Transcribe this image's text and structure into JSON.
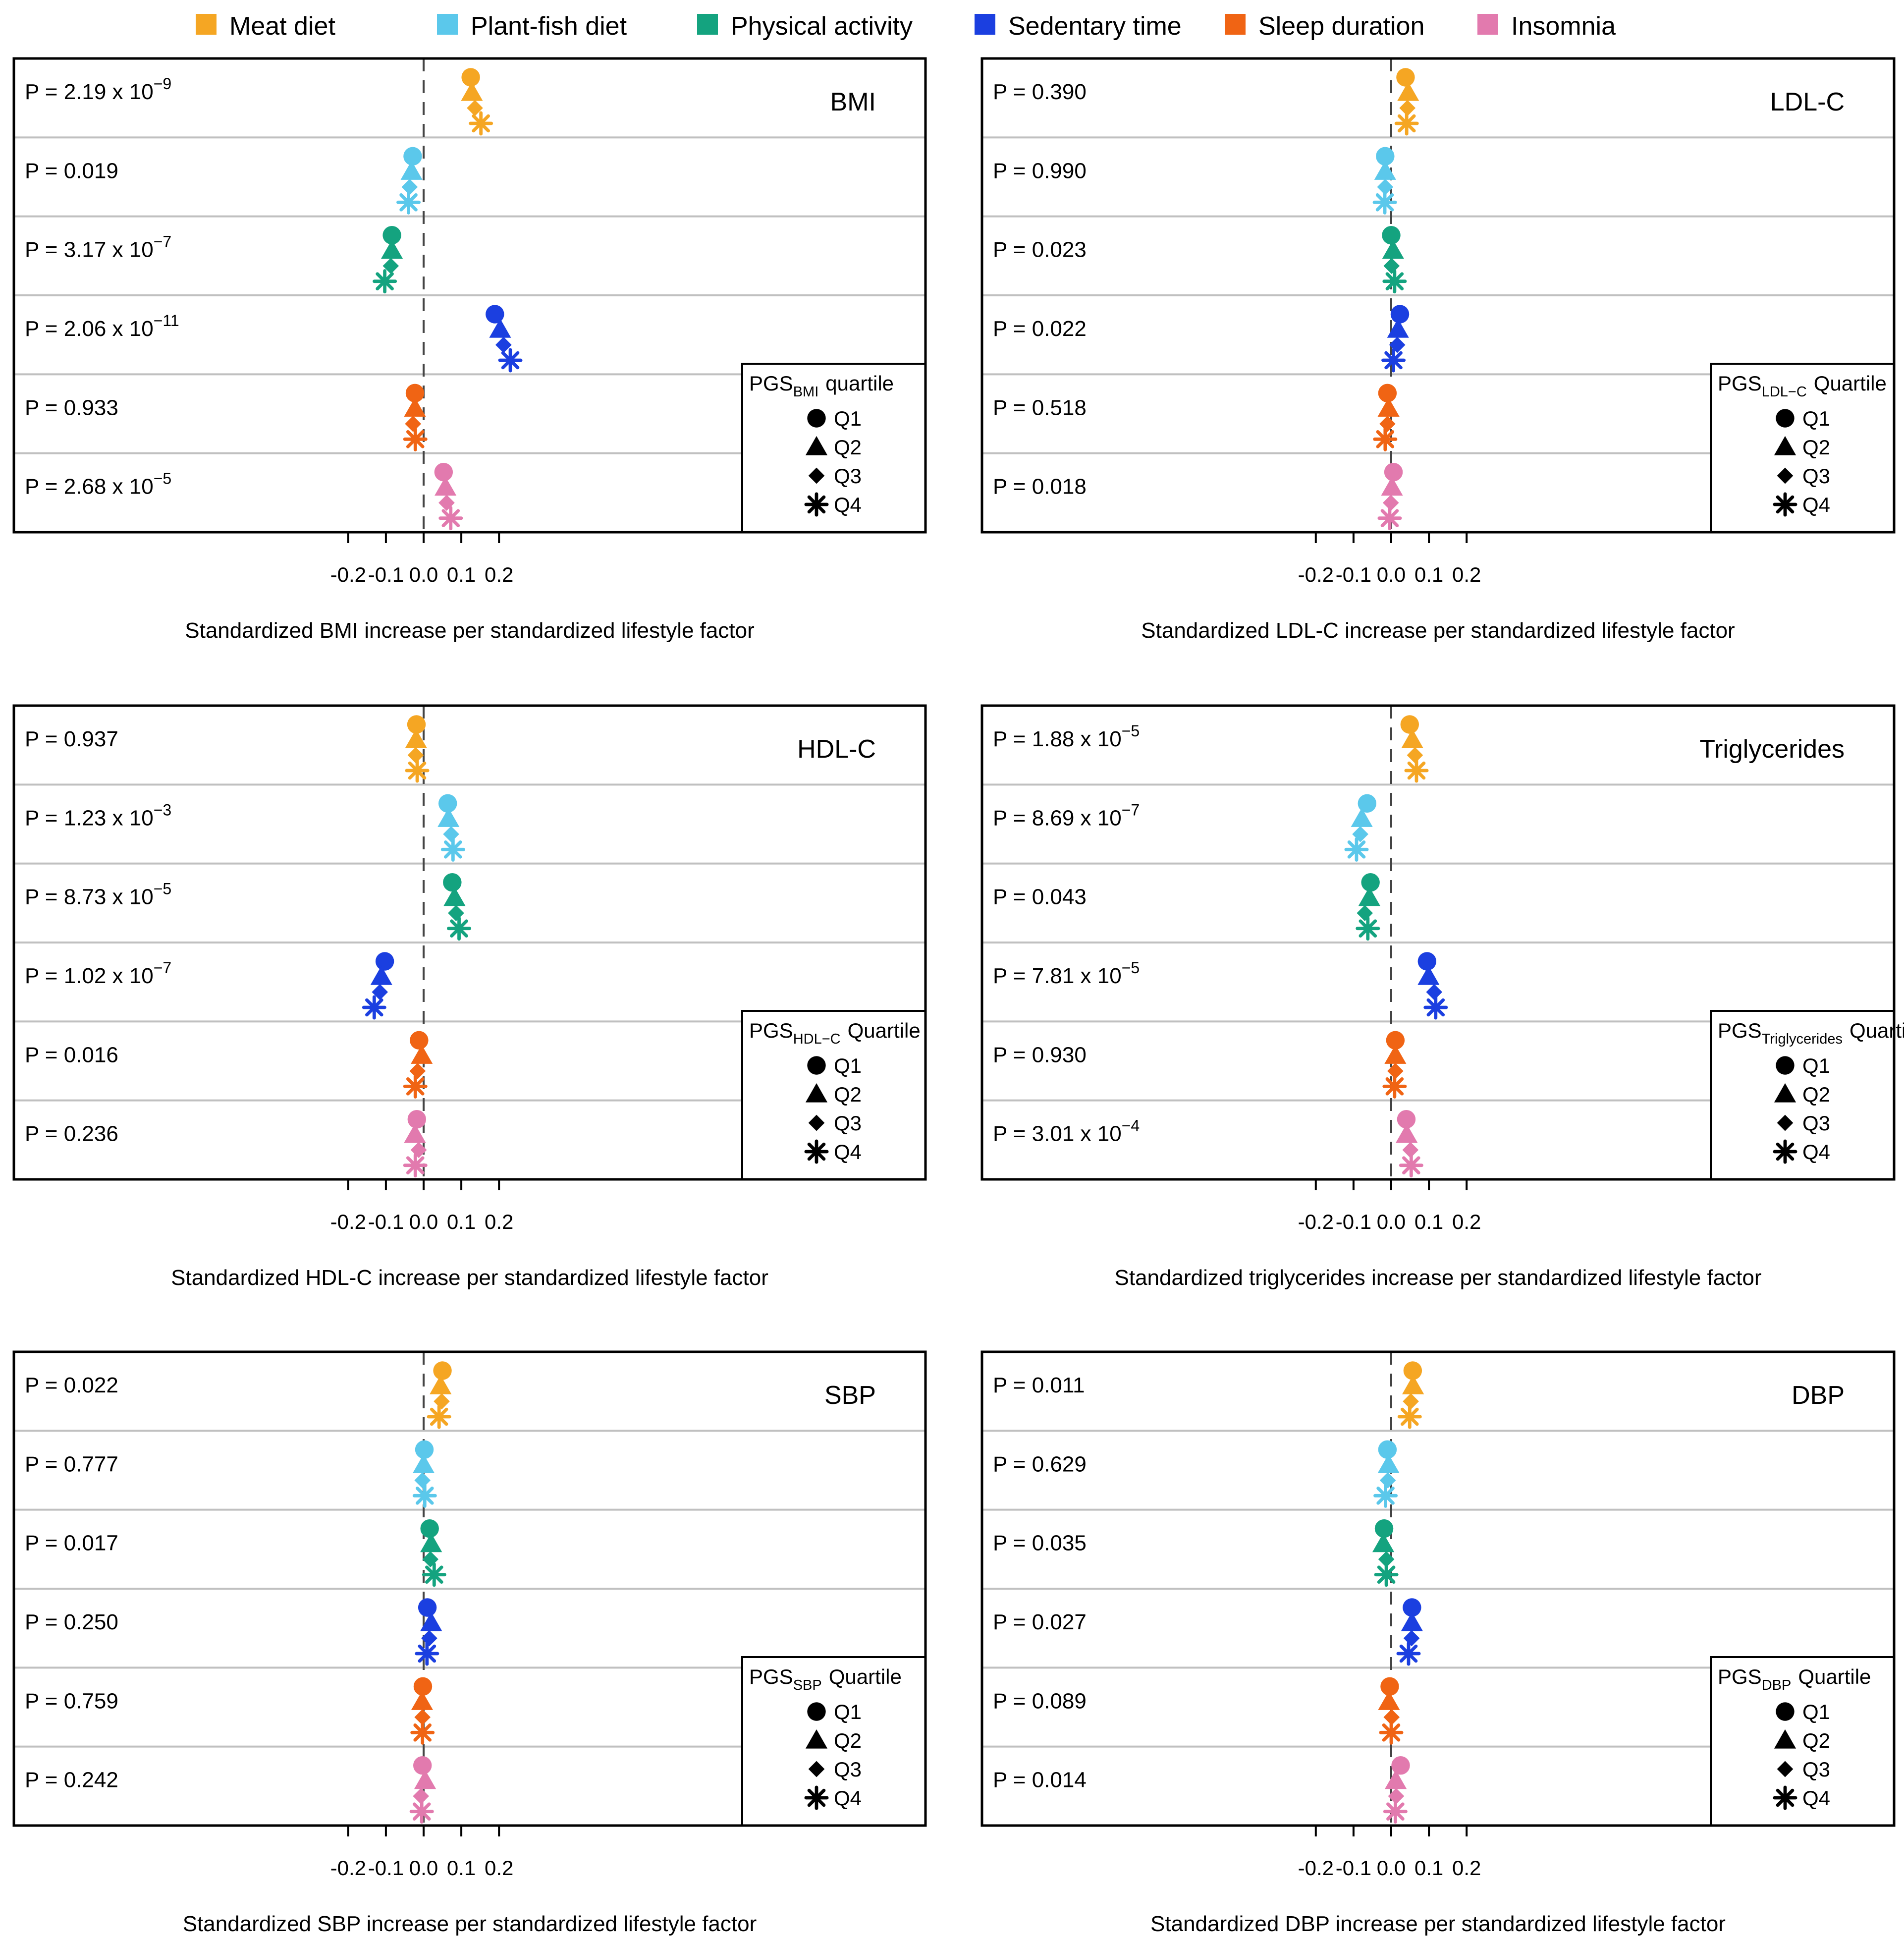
{
  "legend": [
    {
      "label": "Meat diet",
      "color": "#F5A623"
    },
    {
      "label": "Plant-fish diet",
      "color": "#5BC8EB"
    },
    {
      "label": "Physical activity",
      "color": "#14A37F"
    },
    {
      "label": "Sedentary time",
      "color": "#1B3FE0"
    },
    {
      "label": "Sleep duration",
      "color": "#F06414"
    },
    {
      "label": "Insomnia",
      "color": "#E27AAE"
    }
  ],
  "quartile_labels": [
    "Q1",
    "Q2",
    "Q3",
    "Q4"
  ],
  "chart_data": [
    {
      "type": "scatter",
      "title": "BMI",
      "xlabel": "Standardized BMI increase per standardized lifestyle factor",
      "xlim": [
        -0.22,
        0.27
      ],
      "xticks": [
        "-0.2",
        "-0.1",
        "0.0",
        "0.1",
        "0.2"
      ],
      "legend_pgs": "PGS",
      "legend_sub": "BMI",
      "legend_tail": "quartile",
      "pvalues": [
        {
          "base": "P = 2.19 x 10",
          "exp": "−9"
        },
        {
          "base": "P = 0.019",
          "exp": ""
        },
        {
          "base": "P = 3.17 x 10",
          "exp": "−7"
        },
        {
          "base": "P = 2.06 x 10",
          "exp": "−11"
        },
        {
          "base": "P = 0.933",
          "exp": ""
        },
        {
          "base": "P = 2.68 x 10",
          "exp": "−5"
        }
      ],
      "estimates": [
        [
          0.125,
          0.128,
          0.136,
          0.152
        ],
        [
          -0.029,
          -0.032,
          -0.037,
          -0.04
        ],
        [
          -0.084,
          -0.084,
          -0.087,
          -0.103
        ],
        [
          0.189,
          0.203,
          0.212,
          0.23
        ],
        [
          -0.023,
          -0.023,
          -0.028,
          -0.022
        ],
        [
          0.053,
          0.058,
          0.061,
          0.072
        ]
      ]
    },
    {
      "type": "scatter",
      "title": "LDL-C",
      "xlabel": "Standardized LDL-C increase per standardized lifestyle factor",
      "xlim": [
        -0.22,
        0.27
      ],
      "xticks": [
        "-0.2",
        "-0.1",
        "0.0",
        "0.1",
        "0.2"
      ],
      "legend_pgs": "PGS",
      "legend_sub": "LDL−C",
      "legend_tail": "Quartile",
      "pvalues": [
        {
          "base": "P = 0.390",
          "exp": ""
        },
        {
          "base": "P = 0.990",
          "exp": ""
        },
        {
          "base": "P = 0.023",
          "exp": ""
        },
        {
          "base": "P = 0.022",
          "exp": ""
        },
        {
          "base": "P = 0.518",
          "exp": ""
        },
        {
          "base": "P = 0.018",
          "exp": ""
        }
      ],
      "estimates": [
        [
          0.038,
          0.045,
          0.043,
          0.041
        ],
        [
          -0.016,
          -0.016,
          -0.016,
          -0.017
        ],
        [
          0.0,
          0.005,
          0.001,
          0.009
        ],
        [
          0.023,
          0.018,
          0.016,
          0.006
        ],
        [
          -0.01,
          -0.007,
          -0.01,
          -0.016
        ],
        [
          0.006,
          0.002,
          -0.001,
          -0.004
        ]
      ]
    },
    {
      "type": "scatter",
      "title": "HDL-C",
      "xlabel": "Standardized HDL-C increase per standardized lifestyle factor",
      "xlim": [
        -0.22,
        0.27
      ],
      "xticks": [
        "-0.2",
        "-0.1",
        "0.0",
        "0.1",
        "0.2"
      ],
      "legend_pgs": "PGS",
      "legend_sub": "HDL−C",
      "legend_tail": "Quartile",
      "pvalues": [
        {
          "base": "P = 0.937",
          "exp": ""
        },
        {
          "base": "P = 1.23 x 10",
          "exp": "−3"
        },
        {
          "base": "P = 8.73 x 10",
          "exp": "−5"
        },
        {
          "base": "P = 1.02 x 10",
          "exp": "−7"
        },
        {
          "base": "P = 0.016",
          "exp": ""
        },
        {
          "base": "P = 0.236",
          "exp": ""
        }
      ],
      "estimates": [
        [
          -0.019,
          -0.02,
          -0.021,
          -0.017
        ],
        [
          0.064,
          0.066,
          0.073,
          0.078
        ],
        [
          0.076,
          0.082,
          0.086,
          0.094
        ],
        [
          -0.103,
          -0.112,
          -0.116,
          -0.131
        ],
        [
          -0.012,
          -0.005,
          -0.016,
          -0.022
        ],
        [
          -0.018,
          -0.023,
          -0.013,
          -0.022
        ]
      ]
    },
    {
      "type": "scatter",
      "title": "Triglycerides",
      "xlabel": "Standardized triglycerides increase per standardized lifestyle factor",
      "xlim": [
        -0.22,
        0.27
      ],
      "xticks": [
        "-0.2",
        "-0.1",
        "0.0",
        "0.1",
        "0.2"
      ],
      "legend_pgs": "PGS",
      "legend_sub": "Triglycerides",
      "legend_tail": "Quartile",
      "pvalues": [
        {
          "base": "P = 1.88 x 10",
          "exp": "−5"
        },
        {
          "base": "P = 8.69 x 10",
          "exp": "−7"
        },
        {
          "base": "P = 0.043",
          "exp": ""
        },
        {
          "base": "P = 7.81 x 10",
          "exp": "−5"
        },
        {
          "base": "P = 0.930",
          "exp": ""
        },
        {
          "base": "P = 3.01 x 10",
          "exp": "−4"
        }
      ],
      "estimates": [
        [
          0.049,
          0.056,
          0.063,
          0.067
        ],
        [
          -0.064,
          -0.078,
          -0.082,
          -0.092
        ],
        [
          -0.055,
          -0.058,
          -0.07,
          -0.062
        ],
        [
          0.095,
          0.099,
          0.114,
          0.118
        ],
        [
          0.011,
          0.011,
          0.011,
          0.009
        ],
        [
          0.04,
          0.041,
          0.051,
          0.053
        ]
      ]
    },
    {
      "type": "scatter",
      "title": "SBP",
      "xlabel": "Standardized SBP increase per standardized lifestyle factor",
      "xlim": [
        -0.22,
        0.27
      ],
      "xticks": [
        "-0.2",
        "-0.1",
        "0.0",
        "0.1",
        "0.2"
      ],
      "legend_pgs": "PGS",
      "legend_sub": "SBP",
      "legend_tail": "Quartile",
      "pvalues": [
        {
          "base": "P = 0.022",
          "exp": ""
        },
        {
          "base": "P = 0.777",
          "exp": ""
        },
        {
          "base": "P = 0.017",
          "exp": ""
        },
        {
          "base": "P = 0.250",
          "exp": ""
        },
        {
          "base": "P = 0.759",
          "exp": ""
        },
        {
          "base": "P = 0.242",
          "exp": ""
        }
      ],
      "estimates": [
        [
          0.05,
          0.045,
          0.048,
          0.041
        ],
        [
          0.002,
          0.0,
          -0.003,
          0.003
        ],
        [
          0.016,
          0.02,
          0.018,
          0.028
        ],
        [
          0.01,
          0.02,
          0.015,
          0.009
        ],
        [
          -0.002,
          -0.004,
          -0.003,
          -0.003
        ],
        [
          -0.003,
          0.004,
          -0.007,
          -0.005
        ]
      ]
    },
    {
      "type": "scatter",
      "title": "DBP",
      "xlabel": "Standardized DBP increase per standardized lifestyle factor",
      "xlim": [
        -0.22,
        0.27
      ],
      "xticks": [
        "-0.2",
        "-0.1",
        "0.0",
        "0.1",
        "0.2"
      ],
      "legend_pgs": "PGS",
      "legend_sub": "DBP",
      "legend_tail": "Quartile",
      "pvalues": [
        {
          "base": "P = 0.011",
          "exp": ""
        },
        {
          "base": "P = 0.629",
          "exp": ""
        },
        {
          "base": "P = 0.035",
          "exp": ""
        },
        {
          "base": "P = 0.027",
          "exp": ""
        },
        {
          "base": "P = 0.089",
          "exp": ""
        },
        {
          "base": "P = 0.014",
          "exp": ""
        }
      ],
      "estimates": [
        [
          0.057,
          0.058,
          0.052,
          0.049
        ],
        [
          -0.01,
          -0.007,
          -0.009,
          -0.015
        ],
        [
          -0.019,
          -0.021,
          -0.013,
          -0.013
        ],
        [
          0.055,
          0.055,
          0.054,
          0.046
        ],
        [
          -0.004,
          -0.006,
          0.001,
          0.0
        ],
        [
          0.025,
          0.012,
          0.013,
          0.011
        ]
      ]
    }
  ]
}
